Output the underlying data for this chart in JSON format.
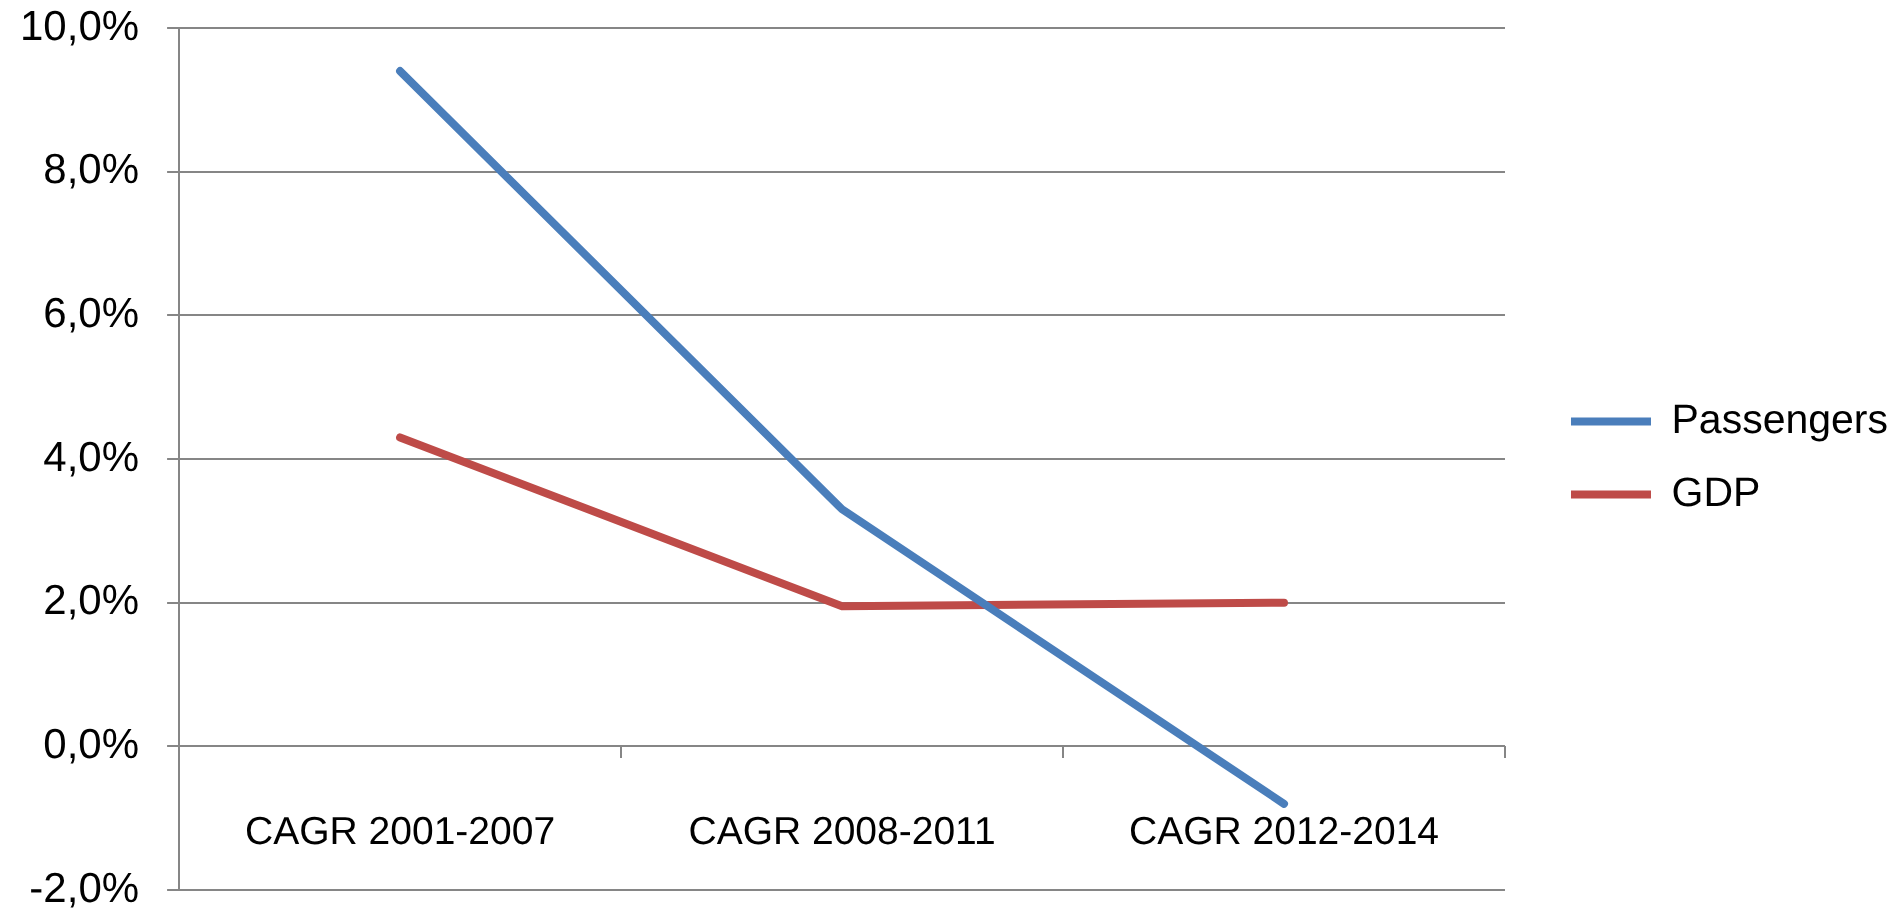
{
  "chart_data": {
    "type": "line",
    "categories": [
      "CAGR 2001-2007",
      "CAGR 2008-2011",
      "CAGR 2012-2014"
    ],
    "series": [
      {
        "name": "Passengers",
        "color": "#4a7ebb",
        "values": [
          9.4,
          3.3,
          -0.8
        ]
      },
      {
        "name": "GDP",
        "color": "#be4b48",
        "values": [
          4.3,
          1.95,
          2.0
        ]
      }
    ],
    "ylim": [
      -2,
      10
    ],
    "yticks": [
      {
        "value": -2,
        "label": "-2,0%"
      },
      {
        "value": 0,
        "label": "0,0%"
      },
      {
        "value": 2,
        "label": "2,0%"
      },
      {
        "value": 4,
        "label": "4,0%"
      },
      {
        "value": 6,
        "label": "6,0%"
      },
      {
        "value": 8,
        "label": "8,0%"
      },
      {
        "value": 10,
        "label": "10,0%"
      }
    ],
    "grid": "y",
    "legend": "right",
    "marker": "none",
    "line_style": "solid"
  }
}
